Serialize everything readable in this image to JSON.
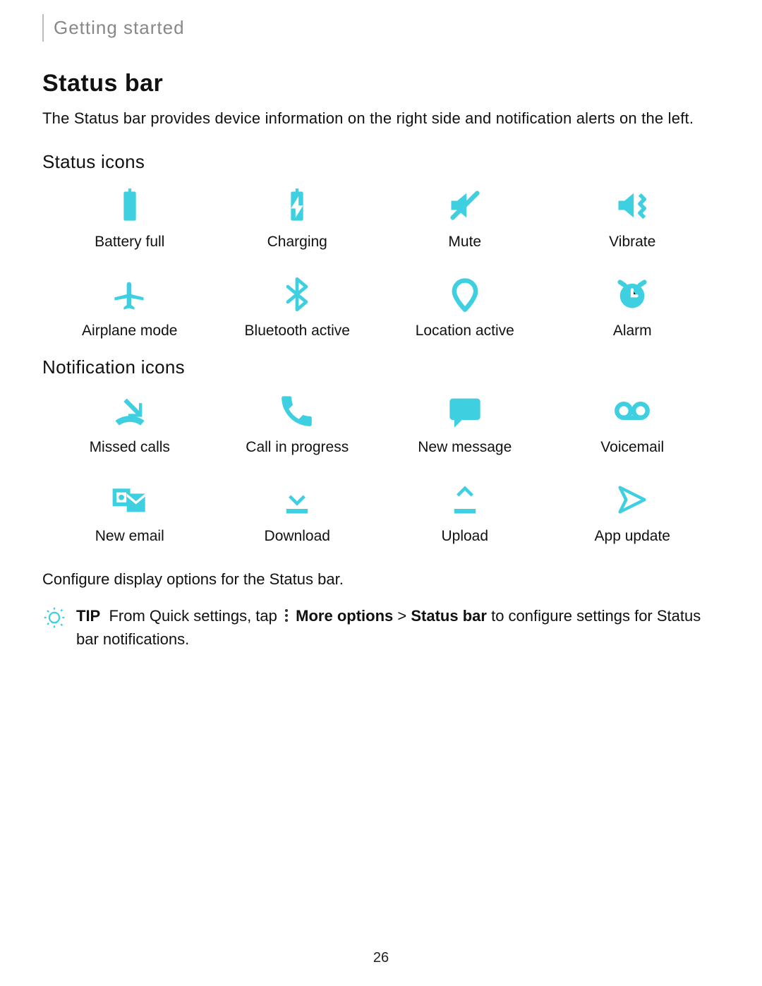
{
  "colors": {
    "accent": "#3ed0e0",
    "text": "#111111",
    "muted": "#888888",
    "divider": "#bbbbbb",
    "background": "#ffffff"
  },
  "breadcrumb": "Getting started",
  "section": {
    "title": "Status bar",
    "intro": "The Status bar provides device information on the right side and notification alerts on the left."
  },
  "status_icons": {
    "heading": "Status icons",
    "items": [
      {
        "icon": "battery-full-icon",
        "label": "Battery full"
      },
      {
        "icon": "charging-icon",
        "label": "Charging"
      },
      {
        "icon": "mute-icon",
        "label": "Mute"
      },
      {
        "icon": "vibrate-icon",
        "label": "Vibrate"
      },
      {
        "icon": "airplane-icon",
        "label": "Airplane mode"
      },
      {
        "icon": "bluetooth-icon",
        "label": "Bluetooth active"
      },
      {
        "icon": "location-icon",
        "label": "Location active"
      },
      {
        "icon": "alarm-icon",
        "label": "Alarm"
      }
    ]
  },
  "notification_icons": {
    "heading": "Notification icons",
    "items": [
      {
        "icon": "missed-call-icon",
        "label": "Missed calls"
      },
      {
        "icon": "call-in-progress-icon",
        "label": "Call in progress"
      },
      {
        "icon": "new-message-icon",
        "label": "New message"
      },
      {
        "icon": "voicemail-icon",
        "label": "Voicemail"
      },
      {
        "icon": "new-email-icon",
        "label": "New email"
      },
      {
        "icon": "download-icon",
        "label": "Download"
      },
      {
        "icon": "upload-icon",
        "label": "Upload"
      },
      {
        "icon": "app-update-icon",
        "label": "App update"
      }
    ]
  },
  "config_note": "Configure display options for the Status bar.",
  "tip": {
    "label": "TIP",
    "text_before": "From Quick settings, tap",
    "more_options": "More options",
    "sep": ">",
    "status_bar": "Status bar",
    "text_after": "to configure settings for Status bar notifications."
  },
  "page_number": "26"
}
